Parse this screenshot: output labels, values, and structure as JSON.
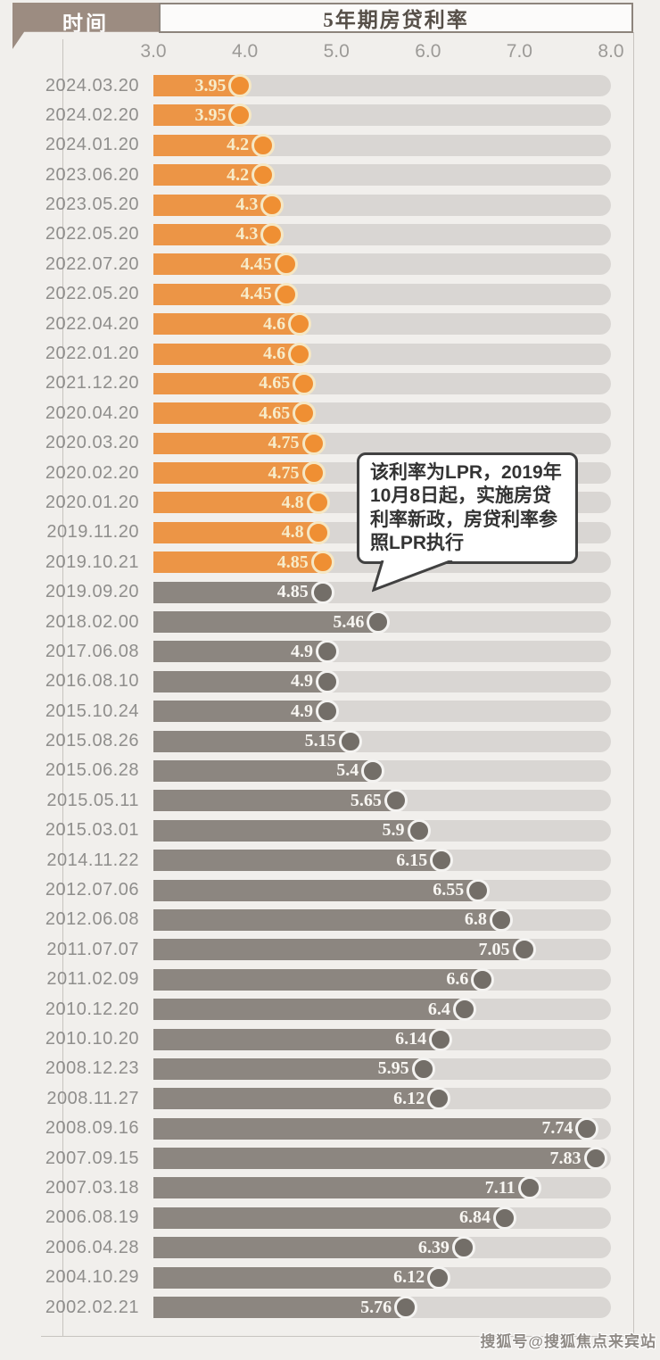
{
  "header": {
    "time_label": "时间",
    "rate_label": "5年期房贷利率"
  },
  "axis": {
    "min": 3.0,
    "max": 8.0,
    "ticks": [
      "3.0",
      "4.0",
      "5.0",
      "6.0",
      "7.0",
      "8.0"
    ]
  },
  "chart_data": {
    "type": "bar",
    "orientation": "horizontal",
    "title": "5年期房贷利率",
    "xlim": [
      3.0,
      8.0
    ],
    "grid": false,
    "rows": [
      {
        "date": "2024.03.20",
        "value": 3.95,
        "group": "lpr"
      },
      {
        "date": "2024.02.20",
        "value": 3.95,
        "group": "lpr"
      },
      {
        "date": "2024.01.20",
        "value": 4.2,
        "group": "lpr"
      },
      {
        "date": "2023.06.20",
        "value": 4.2,
        "group": "lpr"
      },
      {
        "date": "2023.05.20",
        "value": 4.3,
        "group": "lpr"
      },
      {
        "date": "2022.05.20",
        "value": 4.3,
        "group": "lpr"
      },
      {
        "date": "2022.07.20",
        "value": 4.45,
        "group": "lpr"
      },
      {
        "date": "2022.05.20",
        "value": 4.45,
        "group": "lpr"
      },
      {
        "date": "2022.04.20",
        "value": 4.6,
        "group": "lpr"
      },
      {
        "date": "2022.01.20",
        "value": 4.6,
        "group": "lpr"
      },
      {
        "date": "2021.12.20",
        "value": 4.65,
        "group": "lpr"
      },
      {
        "date": "2020.04.20",
        "value": 4.65,
        "group": "lpr"
      },
      {
        "date": "2020.03.20",
        "value": 4.75,
        "group": "lpr"
      },
      {
        "date": "2020.02.20",
        "value": 4.75,
        "group": "lpr"
      },
      {
        "date": "2020.01.20",
        "value": 4.8,
        "group": "lpr"
      },
      {
        "date": "2019.11.20",
        "value": 4.8,
        "group": "lpr"
      },
      {
        "date": "2019.10.21",
        "value": 4.85,
        "group": "lpr"
      },
      {
        "date": "2019.09.20",
        "value": 4.85,
        "group": "pre_lpr"
      },
      {
        "date": "2018.02.00",
        "value": 5.46,
        "group": "pre_lpr"
      },
      {
        "date": "2017.06.08",
        "value": 4.9,
        "group": "pre_lpr"
      },
      {
        "date": "2016.08.10",
        "value": 4.9,
        "group": "pre_lpr"
      },
      {
        "date": "2015.10.24",
        "value": 4.9,
        "group": "pre_lpr"
      },
      {
        "date": "2015.08.26",
        "value": 5.15,
        "group": "pre_lpr"
      },
      {
        "date": "2015.06.28",
        "value": 5.4,
        "group": "pre_lpr"
      },
      {
        "date": "2015.05.11",
        "value": 5.65,
        "group": "pre_lpr"
      },
      {
        "date": "2015.03.01",
        "value": 5.9,
        "group": "pre_lpr"
      },
      {
        "date": "2014.11.22",
        "value": 6.15,
        "group": "pre_lpr"
      },
      {
        "date": "2012.07.06",
        "value": 6.55,
        "group": "pre_lpr"
      },
      {
        "date": "2012.06.08",
        "value": 6.8,
        "group": "pre_lpr"
      },
      {
        "date": "2011.07.07",
        "value": 7.05,
        "group": "pre_lpr"
      },
      {
        "date": "2011.02.09",
        "value": 6.6,
        "group": "pre_lpr"
      },
      {
        "date": "2010.12.20",
        "value": 6.4,
        "group": "pre_lpr"
      },
      {
        "date": "2010.10.20",
        "value": 6.14,
        "group": "pre_lpr"
      },
      {
        "date": "2008.12.23",
        "value": 5.95,
        "group": "pre_lpr"
      },
      {
        "date": "2008.11.27",
        "value": 6.12,
        "group": "pre_lpr"
      },
      {
        "date": "2008.09.16",
        "value": 7.74,
        "group": "pre_lpr"
      },
      {
        "date": "2007.09.15",
        "value": 7.83,
        "group": "pre_lpr"
      },
      {
        "date": "2007.03.18",
        "value": 7.11,
        "group": "pre_lpr"
      },
      {
        "date": "2006.08.19",
        "value": 6.84,
        "group": "pre_lpr"
      },
      {
        "date": "2006.04.28",
        "value": 6.39,
        "group": "pre_lpr"
      },
      {
        "date": "2004.10.29",
        "value": 6.12,
        "group": "pre_lpr"
      },
      {
        "date": "2002.02.21",
        "value": 5.76,
        "group": "pre_lpr"
      }
    ]
  },
  "annotation": {
    "text": "该利率为LPR，2019年10月8日起，实施房贷利率新政，房贷利率参照LPR执行"
  },
  "watermark": "搜狐号@搜狐焦点来宾站",
  "colors": {
    "header_bg": "#9c8c81",
    "lpr_bar": "#ec9546",
    "lpr_dot": "#ef8f33",
    "old_bar": "#8c8680",
    "old_dot": "#736e68",
    "track": "#d9d6d3"
  }
}
